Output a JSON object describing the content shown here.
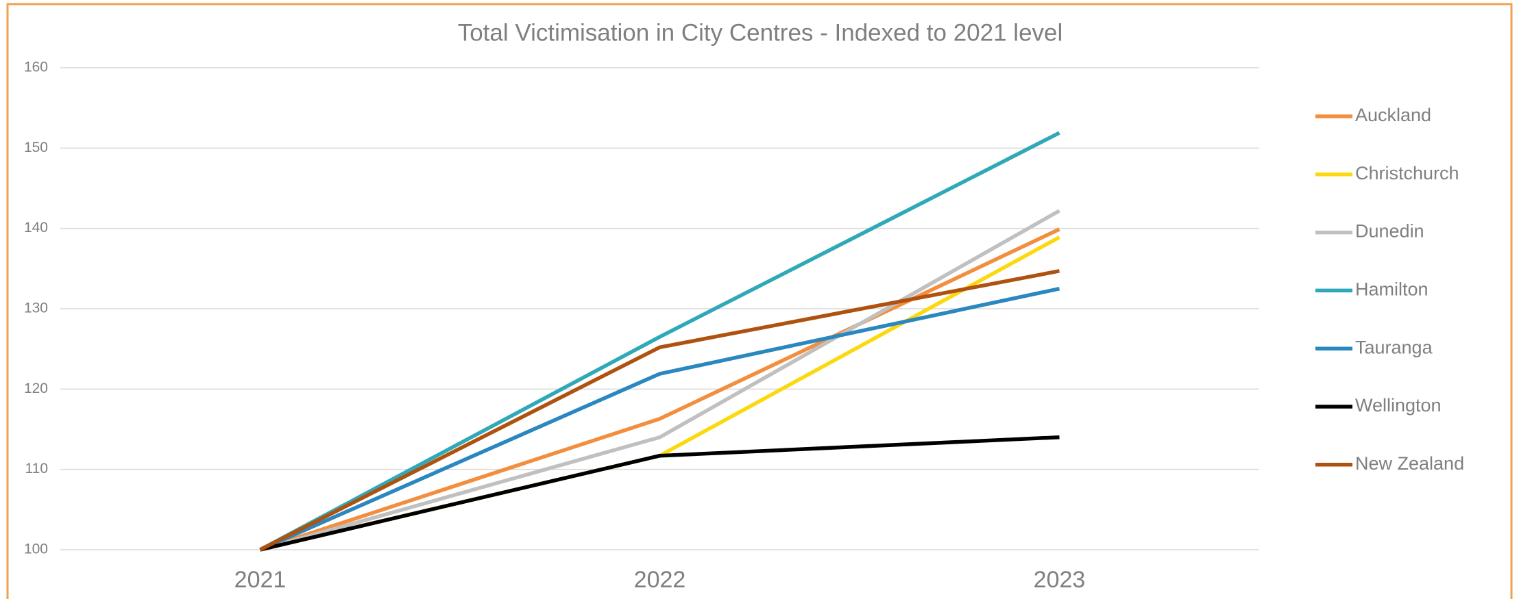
{
  "chart_data": {
    "type": "line",
    "title": "Total Victimisation in City Centres - Indexed to 2021 level",
    "categories": [
      "2021",
      "2022",
      "2023"
    ],
    "series": [
      {
        "name": "Auckland",
        "color": "#f28e3e",
        "values": [
          100,
          116.3,
          139.9
        ]
      },
      {
        "name": "Christchurch",
        "color": "#fcd90f",
        "values": [
          100,
          111.7,
          138.9
        ]
      },
      {
        "name": "Dunedin",
        "color": "#c0c0c0",
        "values": [
          100,
          114,
          142.2
        ]
      },
      {
        "name": "Hamilton",
        "color": "#2fa9b8",
        "values": [
          100,
          126.5,
          151.9
        ]
      },
      {
        "name": "Tauranga",
        "color": "#2a87bf",
        "values": [
          100,
          121.9,
          132.5
        ]
      },
      {
        "name": "Wellington",
        "color": "#000000",
        "values": [
          100,
          111.7,
          114
        ]
      },
      {
        "name": "New Zealand",
        "color": "#b0520f",
        "values": [
          100,
          125.2,
          134.7
        ]
      }
    ],
    "ylim": [
      100,
      160
    ],
    "yticks": [
      100,
      110,
      120,
      130,
      140,
      150,
      160
    ],
    "grid": true,
    "legend": "right"
  }
}
